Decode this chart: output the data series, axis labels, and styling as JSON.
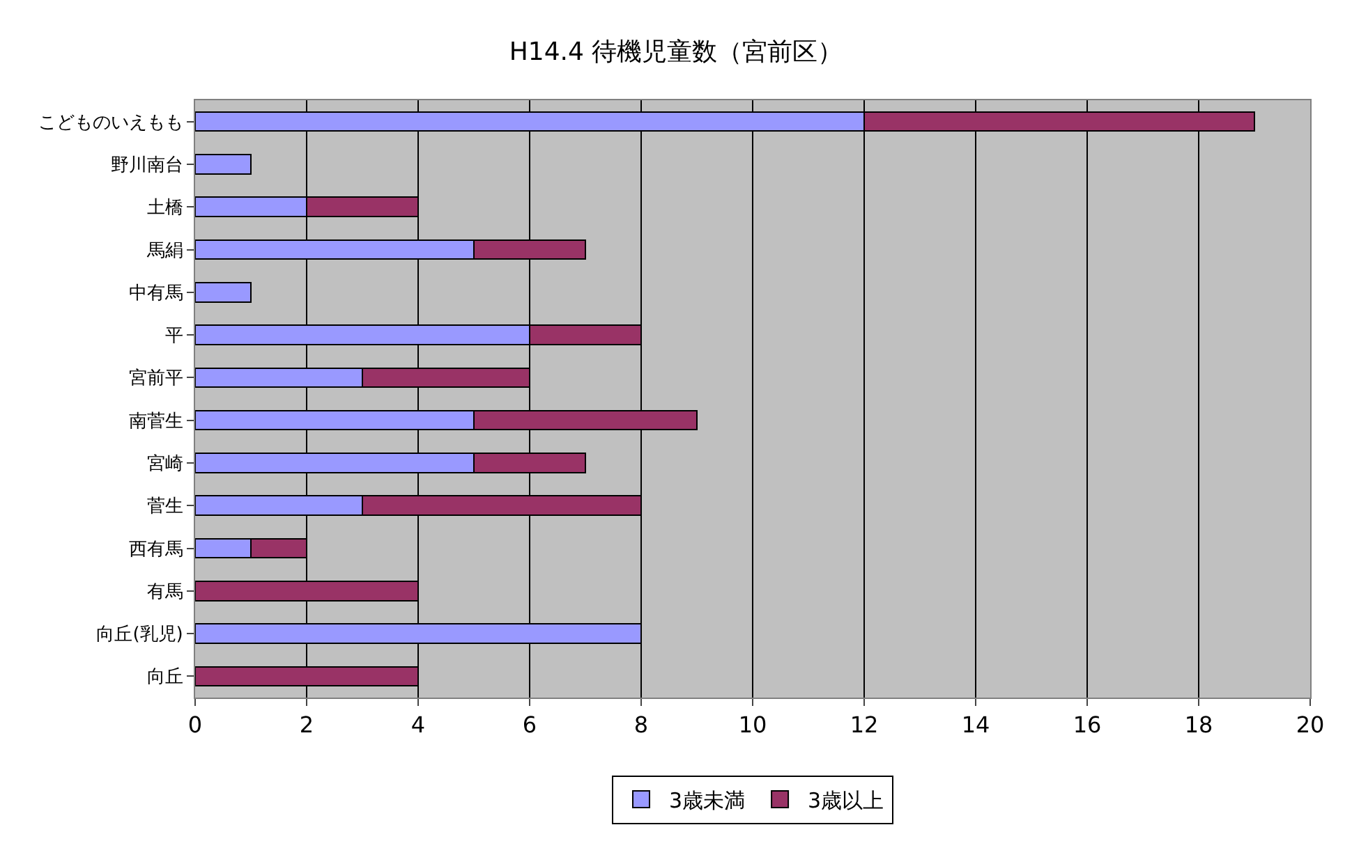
{
  "chart_data": {
    "type": "bar",
    "orientation": "horizontal",
    "stacked": true,
    "title": "H14.4 待機児童数（宮前区）",
    "categories": [
      "こどものいえもも",
      "野川南台",
      "土橋",
      "馬絹",
      "中有馬",
      "平",
      "宮前平",
      "南菅生",
      "宮崎",
      "菅生",
      "西有馬",
      "有馬",
      "向丘(乳児)",
      "向丘"
    ],
    "series": [
      {
        "name": "3歳未満",
        "color": "#9999ff",
        "values": [
          12,
          1,
          2,
          5,
          1,
          6,
          3,
          5,
          5,
          3,
          1,
          null,
          8,
          null
        ]
      },
      {
        "name": "3歳以上",
        "color": "#993366",
        "values": [
          7,
          null,
          2,
          2,
          null,
          2,
          3,
          4,
          2,
          5,
          1,
          4,
          null,
          4
        ]
      }
    ],
    "xlim": [
      0,
      20
    ],
    "xticks": [
      0,
      2,
      4,
      6,
      8,
      10,
      12,
      14,
      16,
      18,
      20
    ],
    "grid": "x",
    "legend": "bottom"
  }
}
